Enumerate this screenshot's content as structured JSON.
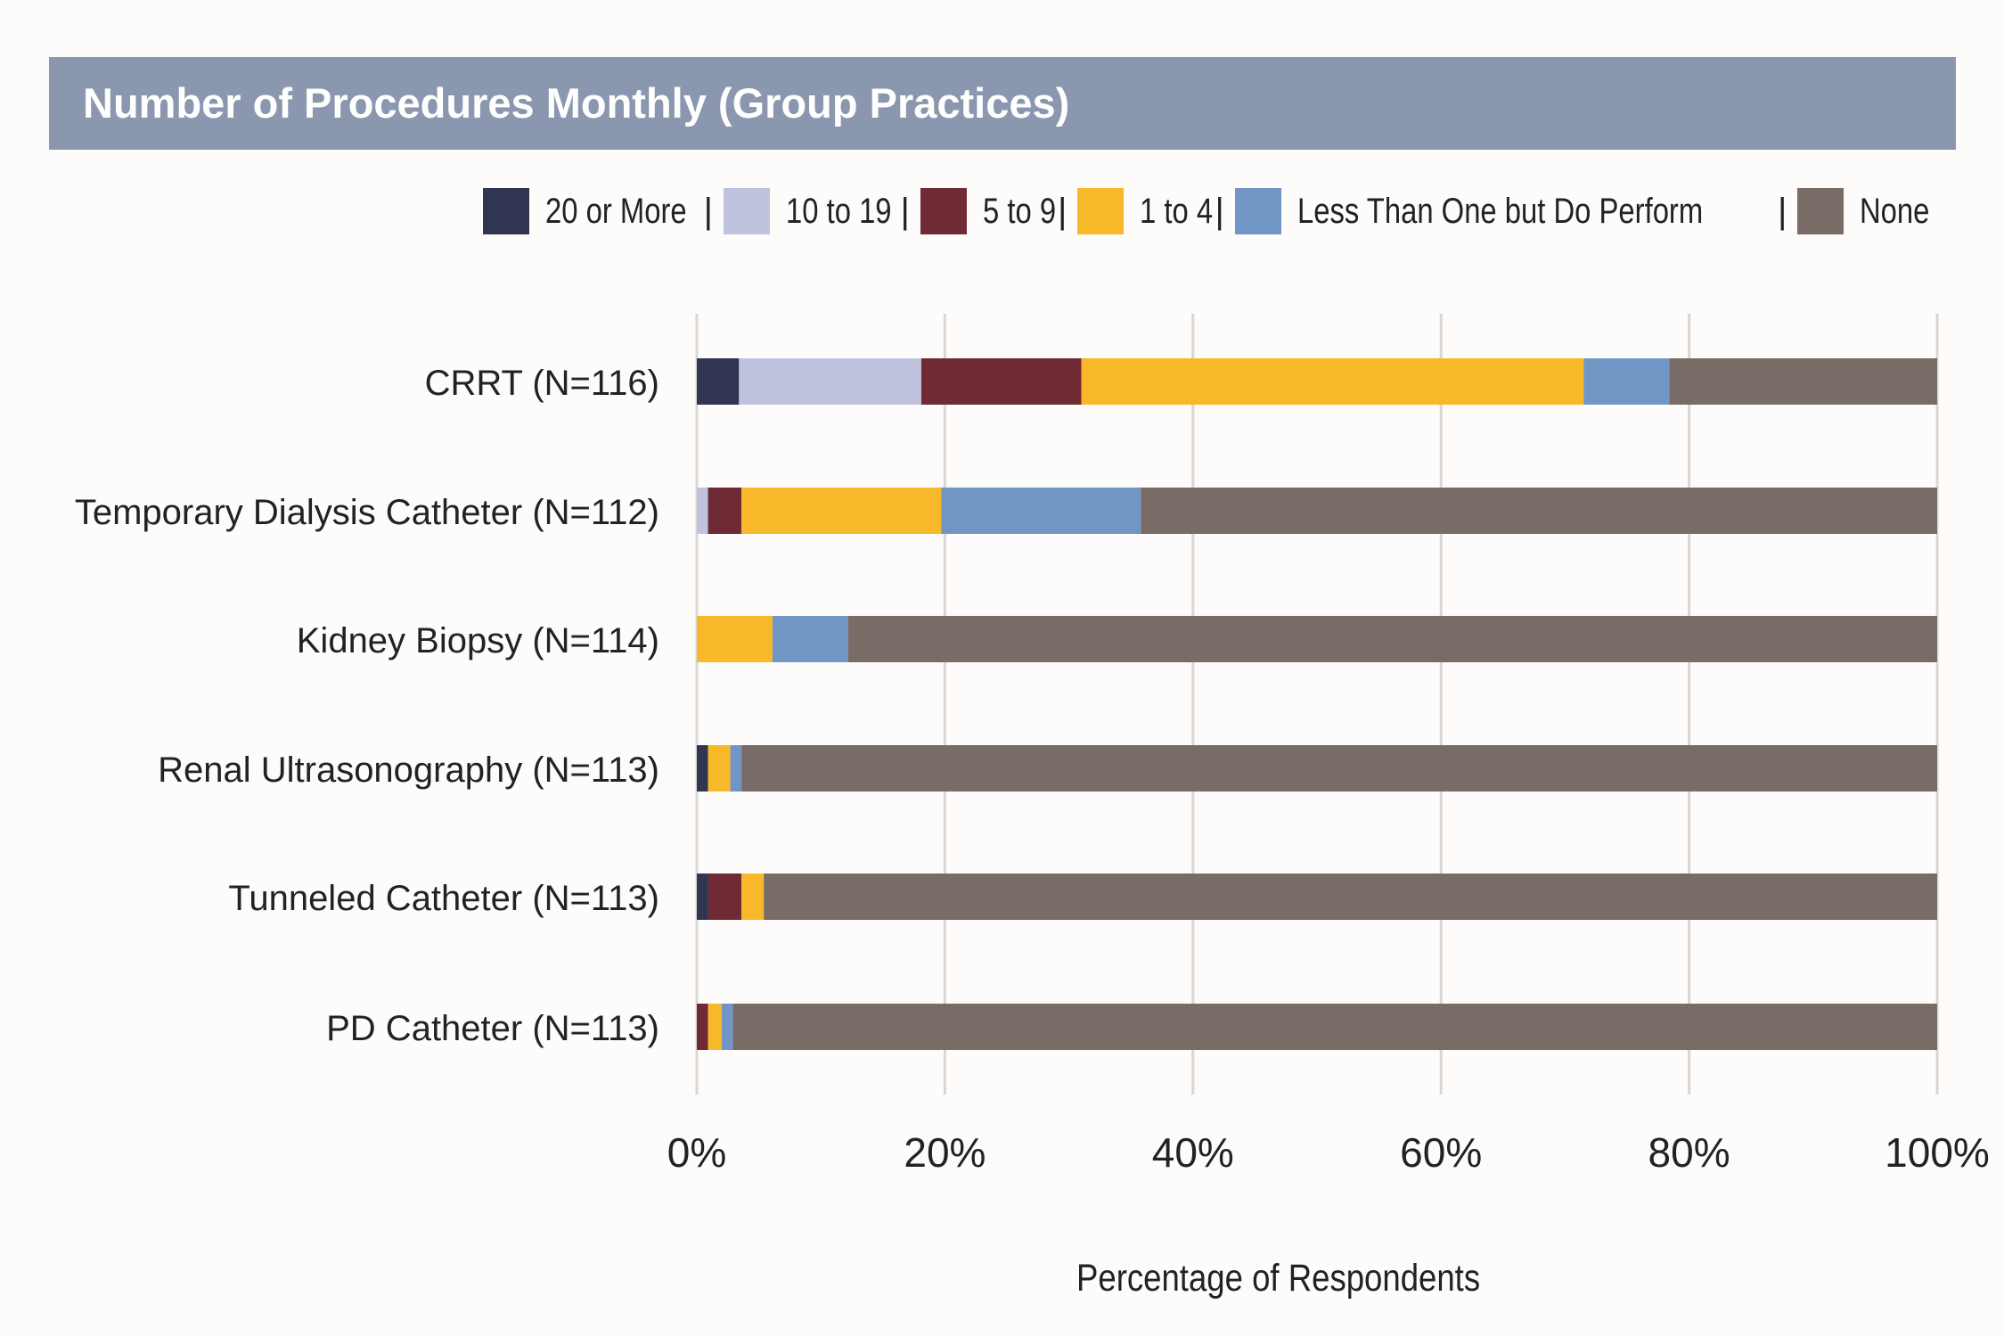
{
  "title": "Number of Procedures Monthly (Group Practices)",
  "colors": {
    "background": "#fdfcfb",
    "title_band": "#8a97ae",
    "title_text": "#ffffff",
    "gridline": "#d9d6d3",
    "text": "#222222"
  },
  "legend": {
    "separator": "|",
    "position": "top-right",
    "items": [
      {
        "label": "20 or More",
        "color": "#303551"
      },
      {
        "label": "10 to 19",
        "color": "#bfc3de"
      },
      {
        "label": "5 to 9",
        "color": "#702a35"
      },
      {
        "label": "1 to 4",
        "color": "#f7b82a"
      },
      {
        "label": "Less Than One but Do Perform",
        "color": "#7196c6"
      },
      {
        "label": "None",
        "color": "#796b66"
      }
    ]
  },
  "chart_data": {
    "type": "bar",
    "orientation": "horizontal",
    "stacked": true,
    "title": "Number of Procedures Monthly (Group Practices)",
    "xlabel": "Percentage of Respondents",
    "ylabel": "",
    "xlim": [
      0,
      100
    ],
    "x_ticks": [
      "0%",
      "20%",
      "40%",
      "60%",
      "80%",
      "100%"
    ],
    "x_tick_values": [
      0,
      20,
      40,
      60,
      80,
      100
    ],
    "grid": true,
    "legend_position": "top-right",
    "categories": [
      "CRRT (N=116)",
      "Temporary Dialysis Catheter (N=112)",
      "Kidney Biopsy (N=114)",
      "Renal Ultrasonography (N=113)",
      "Tunneled Catheter (N=113)",
      "PD Catheter (N=113)"
    ],
    "series": [
      {
        "name": "20 or More",
        "values": [
          3.4,
          0,
          0,
          0.9,
          0.9,
          0
        ]
      },
      {
        "name": "10 to 19",
        "values": [
          14.7,
          0.9,
          0,
          0,
          0,
          0
        ]
      },
      {
        "name": "5 to 9",
        "values": [
          12.9,
          2.7,
          0,
          0,
          2.7,
          0.9
        ]
      },
      {
        "name": "1 to 4",
        "values": [
          40.5,
          16.1,
          6.1,
          1.8,
          1.8,
          1.1
        ]
      },
      {
        "name": "Less Than One but Do Perform",
        "values": [
          6.9,
          16.1,
          6.1,
          0.9,
          0,
          0.9
        ]
      },
      {
        "name": "None",
        "values": [
          21.6,
          64.2,
          87.8,
          96.4,
          94.6,
          97.1
        ]
      }
    ]
  }
}
